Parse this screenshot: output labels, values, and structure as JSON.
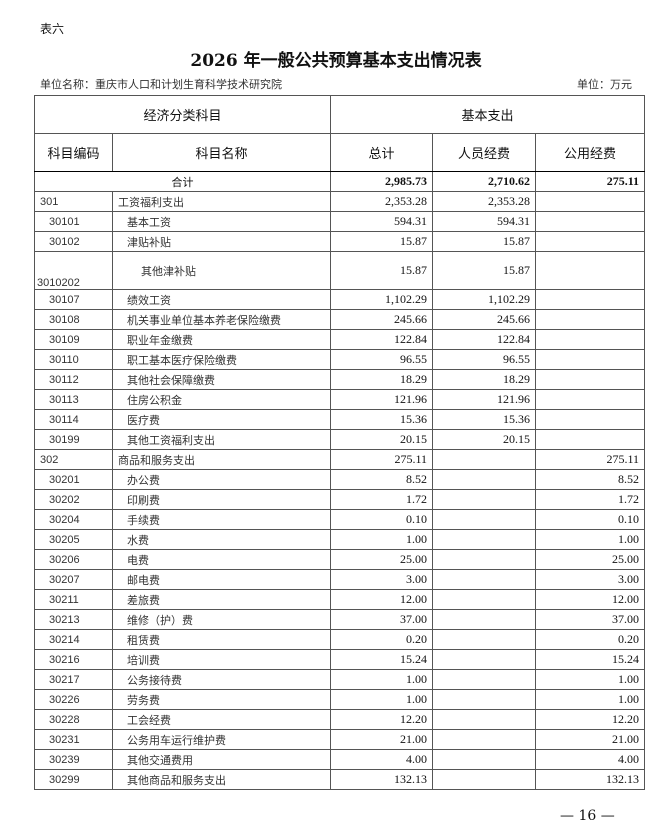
{
  "tag": "表六",
  "title": "2026 年一般公共预算基本支出情况表",
  "unit_name": "单位名称：重庆市人口和计划生育科学技术研究院",
  "unit": "单位：万元",
  "header": {
    "group1": "经济分类科目",
    "group2": "基本支出",
    "code": "科目编码",
    "name": "科目名称",
    "total": "总计",
    "personnel": "人员经费",
    "public": "公用经费"
  },
  "total_row": {
    "label": "合计",
    "total": "2,985.73",
    "personnel": "2,710.62",
    "public": "275.11"
  },
  "rows": [
    {
      "code": "301",
      "name": "工资福利支出",
      "total": "2,353.28",
      "personnel": "2,353.28",
      "public": "",
      "level": 0
    },
    {
      "code": "30101",
      "name": "基本工资",
      "total": "594.31",
      "personnel": "594.31",
      "public": "",
      "level": 1
    },
    {
      "code": "30102",
      "name": "津贴补贴",
      "total": "15.87",
      "personnel": "15.87",
      "public": "",
      "level": 1
    },
    {
      "code": "3010202",
      "name": "其他津补贴",
      "total": "15.87",
      "personnel": "15.87",
      "public": "",
      "level": 2
    },
    {
      "code": "30107",
      "name": "绩效工资",
      "total": "1,102.29",
      "personnel": "1,102.29",
      "public": "",
      "level": 1
    },
    {
      "code": "30108",
      "name": "机关事业单位基本养老保险缴费",
      "total": "245.66",
      "personnel": "245.66",
      "public": "",
      "level": 1
    },
    {
      "code": "30109",
      "name": "职业年金缴费",
      "total": "122.84",
      "personnel": "122.84",
      "public": "",
      "level": 1
    },
    {
      "code": "30110",
      "name": "职工基本医疗保险缴费",
      "total": "96.55",
      "personnel": "96.55",
      "public": "",
      "level": 1
    },
    {
      "code": "30112",
      "name": "其他社会保障缴费",
      "total": "18.29",
      "personnel": "18.29",
      "public": "",
      "level": 1
    },
    {
      "code": "30113",
      "name": "住房公积金",
      "total": "121.96",
      "personnel": "121.96",
      "public": "",
      "level": 1
    },
    {
      "code": "30114",
      "name": "医疗费",
      "total": "15.36",
      "personnel": "15.36",
      "public": "",
      "level": 1
    },
    {
      "code": "30199",
      "name": "其他工资福利支出",
      "total": "20.15",
      "personnel": "20.15",
      "public": "",
      "level": 1
    },
    {
      "code": "302",
      "name": "商品和服务支出",
      "total": "275.11",
      "personnel": "",
      "public": "275.11",
      "level": 0
    },
    {
      "code": "30201",
      "name": "办公费",
      "total": "8.52",
      "personnel": "",
      "public": "8.52",
      "level": 1
    },
    {
      "code": "30202",
      "name": "印刷费",
      "total": "1.72",
      "personnel": "",
      "public": "1.72",
      "level": 1
    },
    {
      "code": "30204",
      "name": "手续费",
      "total": "0.10",
      "personnel": "",
      "public": "0.10",
      "level": 1
    },
    {
      "code": "30205",
      "name": "水费",
      "total": "1.00",
      "personnel": "",
      "public": "1.00",
      "level": 1
    },
    {
      "code": "30206",
      "name": "电费",
      "total": "25.00",
      "personnel": "",
      "public": "25.00",
      "level": 1
    },
    {
      "code": "30207",
      "name": "邮电费",
      "total": "3.00",
      "personnel": "",
      "public": "3.00",
      "level": 1
    },
    {
      "code": "30211",
      "name": "差旅费",
      "total": "12.00",
      "personnel": "",
      "public": "12.00",
      "level": 1
    },
    {
      "code": "30213",
      "name": "维修（护）费",
      "total": "37.00",
      "personnel": "",
      "public": "37.00",
      "level": 1
    },
    {
      "code": "30214",
      "name": "租赁费",
      "total": "0.20",
      "personnel": "",
      "public": "0.20",
      "level": 1
    },
    {
      "code": "30216",
      "name": "培训费",
      "total": "15.24",
      "personnel": "",
      "public": "15.24",
      "level": 1
    },
    {
      "code": "30217",
      "name": "公务接待费",
      "total": "1.00",
      "personnel": "",
      "public": "1.00",
      "level": 1
    },
    {
      "code": "30226",
      "name": "劳务费",
      "total": "1.00",
      "personnel": "",
      "public": "1.00",
      "level": 1
    },
    {
      "code": "30228",
      "name": "工会经费",
      "total": "12.20",
      "personnel": "",
      "public": "12.20",
      "level": 1
    },
    {
      "code": "30231",
      "name": "公务用车运行维护费",
      "total": "21.00",
      "personnel": "",
      "public": "21.00",
      "level": 1
    },
    {
      "code": "30239",
      "name": "其他交通费用",
      "total": "4.00",
      "personnel": "",
      "public": "4.00",
      "level": 1
    },
    {
      "code": "30299",
      "name": "其他商品和服务支出",
      "total": "132.13",
      "personnel": "",
      "public": "132.13",
      "level": 1
    }
  ],
  "page_number": "— 16 —"
}
